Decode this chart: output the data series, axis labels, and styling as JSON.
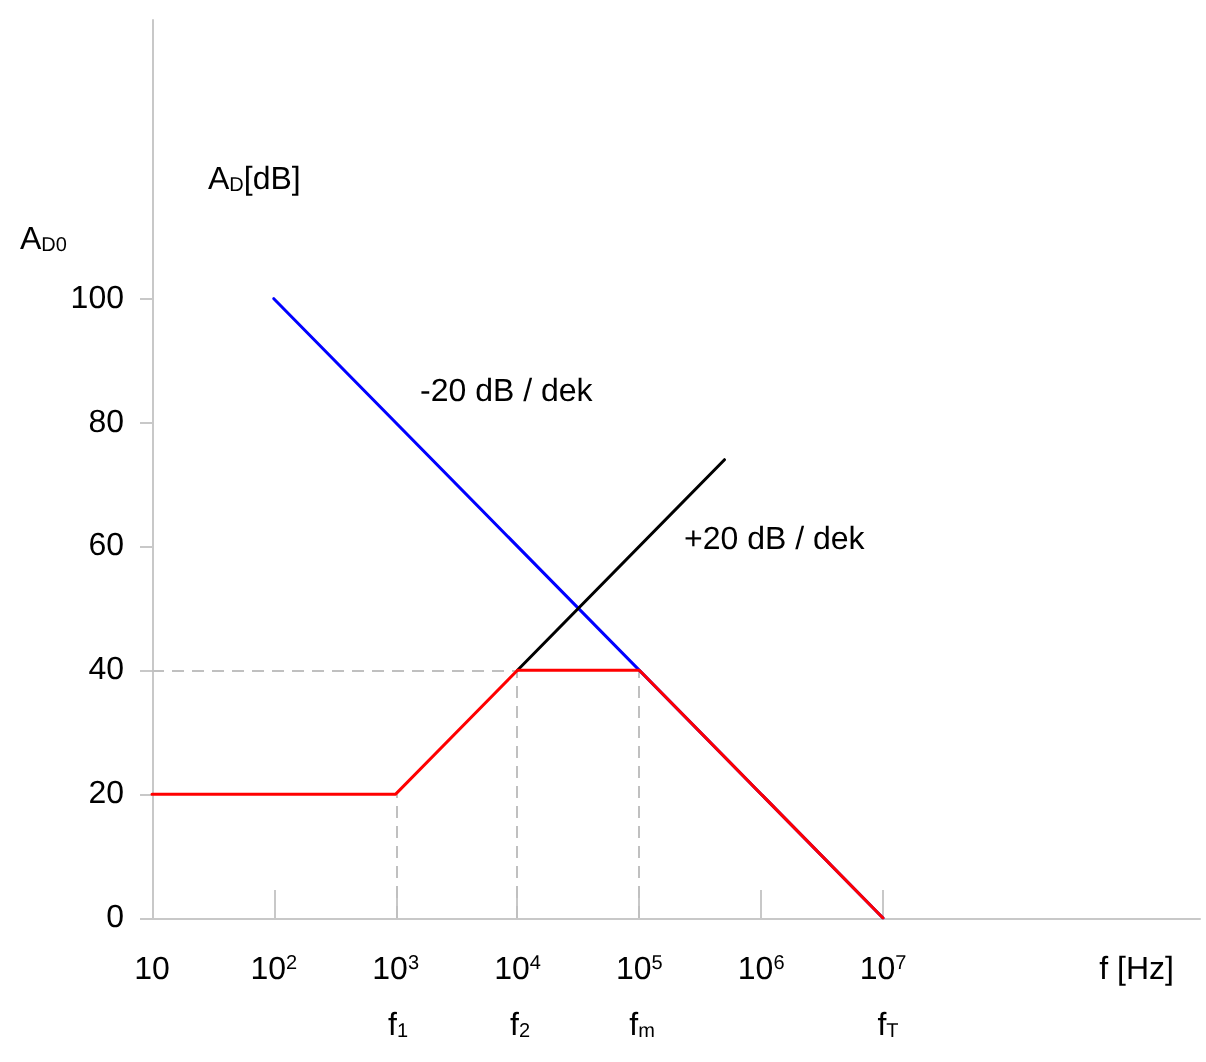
{
  "chart_data": {
    "type": "line",
    "ylabel": "A$_{D}$[dB]",
    "xlabel": "f [Hz]",
    "log": "x",
    "marker": "none",
    "xlim": [
      10,
      4000000000
    ],
    "xticks": [
      10,
      {
        "value": 100,
        "label": "10$^{2}$"
      },
      {
        "value": 1000,
        "label": "10$^{3}$"
      },
      {
        "value": 10000,
        "label": "10$^{4}$"
      },
      {
        "value": 100000,
        "label": "10$^{5}$"
      },
      {
        "value": 1000000,
        "label": "10$^{6}$"
      },
      {
        "value": 10000000,
        "label": "10$^{7}$"
      }
    ],
    "ylim": [
      0,
      145
    ],
    "yticks": [
      0,
      20,
      40,
      60,
      80,
      100
    ],
    "series": [
      {
        "color": "#0000ff",
        "x": [
          100,
          10000000
        ],
        "values": [
          100,
          0
        ]
      },
      {
        "color": "#000000",
        "x": [
          10000,
          500000
        ],
        "values": [
          40,
          74
        ]
      },
      {
        "color": "#ff0000",
        "x": [
          10,
          1000,
          10000,
          100000,
          10000000
        ],
        "values": [
          20,
          20,
          40,
          40,
          0
        ]
      }
    ],
    "ref_lines": [
      {
        "axis": "x",
        "value": 1000,
        "color": "#c0c0c0",
        "line_style": "dashed"
      },
      {
        "axis": "x",
        "value": 10000,
        "color": "#c0c0c0",
        "line_style": "dashed"
      },
      {
        "axis": "x",
        "value": 100000,
        "color": "#c0c0c0",
        "line_style": "dashed"
      },
      {
        "axis": "y",
        "value": 40,
        "color": "#c0c0c0",
        "line_style": "dashed"
      }
    ],
    "annotations": [
      "-20 dB / dek",
      "+20 dB / dek",
      "A$_{D0}$",
      "f$_{1}$",
      "f$_{2}$",
      "f$_{m}$",
      "f$_{T}$"
    ]
  }
}
